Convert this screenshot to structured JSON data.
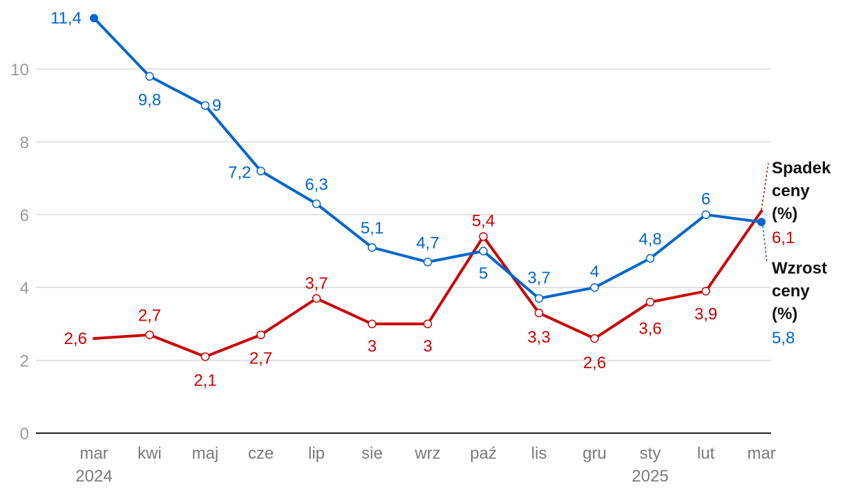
{
  "chart_data": {
    "type": "line",
    "categories": [
      "mar",
      "kwi",
      "maj",
      "cze",
      "lip",
      "sie",
      "wrz",
      "paź",
      "lis",
      "gru",
      "sty",
      "lut",
      "mar"
    ],
    "year_labels": [
      {
        "index": 0,
        "label": "2024"
      },
      {
        "index": 10,
        "label": "2025"
      }
    ],
    "ylim": [
      0,
      12
    ],
    "yticks": [
      0,
      2,
      4,
      6,
      8,
      10
    ],
    "series": [
      {
        "name": "Wzrost ceny (%)",
        "legend_lines": [
          "Wzrost",
          "ceny",
          "(%)"
        ],
        "legend_value": "5,8",
        "color": "#0066cc",
        "values": [
          11.4,
          9.8,
          9,
          7.2,
          6.3,
          5.1,
          4.7,
          5,
          3.7,
          4,
          4.8,
          6,
          5.8
        ],
        "labels": [
          "11,4",
          "9,8",
          "9",
          "7,2",
          "6,3",
          "5,1",
          "4,7",
          "5",
          "3,7",
          "4",
          "4,8",
          "6",
          ""
        ]
      },
      {
        "name": "Spadek ceny (%)",
        "legend_lines": [
          "Spadek",
          "ceny",
          "(%)"
        ],
        "legend_value": "6,1",
        "color": "#cc0000",
        "values": [
          2.6,
          2.7,
          2.1,
          2.7,
          3.7,
          3,
          3,
          5.4,
          3.3,
          2.6,
          3.6,
          3.9,
          6.1
        ],
        "labels": [
          "2,6",
          "2,7",
          "2,1",
          "2,7",
          "3,7",
          "3",
          "3",
          "5,4",
          "3,3",
          "2,6",
          "3,6",
          "3,9",
          ""
        ]
      }
    ]
  }
}
